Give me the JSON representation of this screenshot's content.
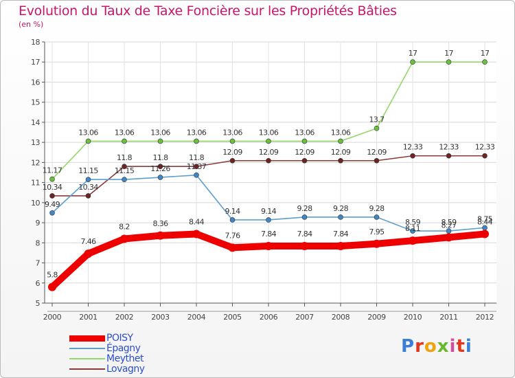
{
  "title": "Evolution du Taux de Taxe Foncière sur les Propriétés Bâties",
  "unit_label": "(en %)",
  "logo_text": "Proxiti",
  "logo_colors": [
    "#3a7fd6",
    "#e2371c",
    "#f0a30a",
    "#6ab82e",
    "#d14fa0",
    "#e2371c",
    "#3a7fd6"
  ],
  "chart_data": {
    "type": "line",
    "title": "Evolution du Taux de Taxe Foncière sur les Propriétés Bâties",
    "ylabel": "(en %)",
    "xlabel": "",
    "ylim": [
      5,
      18
    ],
    "yticks": [
      "5",
      "6",
      "7",
      "8",
      "9",
      "10",
      "11",
      "12",
      "13",
      "14",
      "15",
      "16",
      "17",
      "18"
    ],
    "categories": [
      "2000",
      "2001",
      "2002",
      "2003",
      "2004",
      "2005",
      "2006",
      "2007",
      "2008",
      "2009",
      "2010",
      "2011",
      "2012"
    ],
    "grid": true,
    "series": [
      {
        "name": "POISY",
        "color": "#ee0000",
        "marker": "#ee0000",
        "values": [
          5.8,
          7.46,
          8.2,
          8.36,
          8.44,
          7.76,
          7.84,
          7.84,
          7.84,
          7.95,
          8.11,
          8.27,
          8.44
        ],
        "labels": [
          "5.8",
          "7.46",
          "8.2",
          "8.36",
          "8.44",
          "7.76",
          "7.84",
          "7.84",
          "7.84",
          "7.95",
          "8.11",
          "8.27",
          "8.44"
        ]
      },
      {
        "name": "Épagny",
        "color": "#5b9fd0",
        "marker": "#3f86c4",
        "values": [
          9.49,
          11.15,
          11.15,
          11.26,
          11.37,
          9.14,
          9.14,
          9.28,
          9.28,
          9.28,
          8.59,
          8.59,
          8.75
        ],
        "labels": [
          "9.49",
          "11.15",
          "11.15",
          "11.26",
          "11.37",
          "9.14",
          "9.14",
          "9.28",
          "9.28",
          "9.28",
          "8.59",
          "8.59",
          "8.75"
        ]
      },
      {
        "name": "Meythet",
        "color": "#94d86a",
        "marker": "#6cc040",
        "values": [
          11.17,
          13.06,
          13.06,
          13.06,
          13.06,
          13.06,
          13.06,
          13.06,
          13.06,
          13.7,
          17,
          17,
          17
        ],
        "labels": [
          "11.17",
          "13.06",
          "13.06",
          "13.06",
          "13.06",
          "13.06",
          "13.06",
          "13.06",
          "13.06",
          "13.7",
          "17",
          "17",
          "17"
        ]
      },
      {
        "name": "Lovagny",
        "color": "#8b3a3a",
        "marker": "#6e2424",
        "values": [
          10.34,
          10.34,
          11.8,
          11.8,
          11.8,
          12.09,
          12.09,
          12.09,
          12.09,
          12.09,
          12.33,
          12.33,
          12.33
        ],
        "labels": [
          "10.34",
          "10.34",
          "11.8",
          "11.8",
          "11.8",
          "12.09",
          "12.09",
          "12.09",
          "12.09",
          "12.09",
          "12.33",
          "12.33",
          "12.33"
        ]
      }
    ]
  }
}
